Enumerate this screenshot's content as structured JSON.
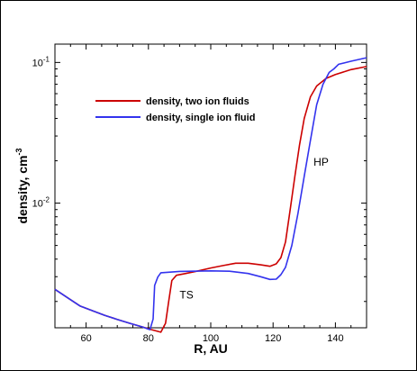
{
  "chart_data": {
    "type": "line",
    "xlabel": "R, AU",
    "ylabel": "density, cm",
    "ylabel_sup": "-3",
    "xlim": [
      50,
      150
    ],
    "ylim": [
      0.0013,
      0.135
    ],
    "yscale": "log",
    "x_ticks": [
      60,
      80,
      100,
      120,
      140
    ],
    "x_tick_labels": [
      "60",
      "80",
      "100",
      "120",
      "140"
    ],
    "y_major_ticks": [
      {
        "value": 0.01,
        "base": "10",
        "exp": "-2"
      },
      {
        "value": 0.1,
        "base": "10",
        "exp": "-1"
      }
    ],
    "legend": {
      "placement": "upper-left"
    },
    "series": [
      {
        "name": "density, two ion fluids",
        "color": "#cc0000",
        "points": [
          [
            50,
            0.00244
          ],
          [
            55,
            0.00206
          ],
          [
            58,
            0.00186
          ],
          [
            62,
            0.00172
          ],
          [
            66,
            0.00159
          ],
          [
            70,
            0.00149
          ],
          [
            74,
            0.0014
          ],
          [
            78,
            0.00132
          ],
          [
            81,
            0.00126
          ],
          [
            84,
            0.00121
          ],
          [
            85.5,
            0.0014
          ],
          [
            86.5,
            0.002
          ],
          [
            87.5,
            0.00282
          ],
          [
            89,
            0.00307
          ],
          [
            92,
            0.00316
          ],
          [
            96,
            0.0033
          ],
          [
            100,
            0.00346
          ],
          [
            104,
            0.0036
          ],
          [
            108,
            0.00374
          ],
          [
            112,
            0.00374
          ],
          [
            116,
            0.00364
          ],
          [
            119,
            0.00356
          ],
          [
            121,
            0.0037
          ],
          [
            122.5,
            0.0041
          ],
          [
            124,
            0.0053
          ],
          [
            125.5,
            0.009
          ],
          [
            127,
            0.0155
          ],
          [
            128.5,
            0.026
          ],
          [
            130,
            0.04
          ],
          [
            132,
            0.057
          ],
          [
            134,
            0.068
          ],
          [
            137,
            0.077
          ],
          [
            140,
            0.082
          ],
          [
            145,
            0.089
          ],
          [
            150,
            0.0935
          ]
        ]
      },
      {
        "name": "density, single ion fluid",
        "color": "#3333ee",
        "points": [
          [
            50,
            0.00244
          ],
          [
            55,
            0.00206
          ],
          [
            58,
            0.00186
          ],
          [
            62,
            0.00172
          ],
          [
            66,
            0.00159
          ],
          [
            70,
            0.00149
          ],
          [
            74,
            0.0014
          ],
          [
            78,
            0.00132
          ],
          [
            80.5,
            0.00126
          ],
          [
            81.5,
            0.0015
          ],
          [
            82,
            0.0026
          ],
          [
            83,
            0.00298
          ],
          [
            84,
            0.0032
          ],
          [
            90,
            0.00327
          ],
          [
            100,
            0.0033
          ],
          [
            106,
            0.00328
          ],
          [
            112,
            0.00316
          ],
          [
            116,
            0.003
          ],
          [
            119,
            0.00287
          ],
          [
            121,
            0.00288
          ],
          [
            122.5,
            0.0031
          ],
          [
            124,
            0.0035
          ],
          [
            126,
            0.005
          ],
          [
            128,
            0.0085
          ],
          [
            130,
            0.0155
          ],
          [
            132,
            0.028
          ],
          [
            134,
            0.05
          ],
          [
            136,
            0.07
          ],
          [
            138,
            0.085
          ],
          [
            139.5,
            0.09
          ],
          [
            141,
            0.097
          ],
          [
            145,
            0.102
          ],
          [
            150,
            0.108
          ]
        ]
      }
    ],
    "annotations": [
      {
        "text": "TS",
        "x": 90,
        "y": 0.0021
      },
      {
        "text": "HP",
        "x": 133,
        "y": 0.0185
      }
    ]
  }
}
